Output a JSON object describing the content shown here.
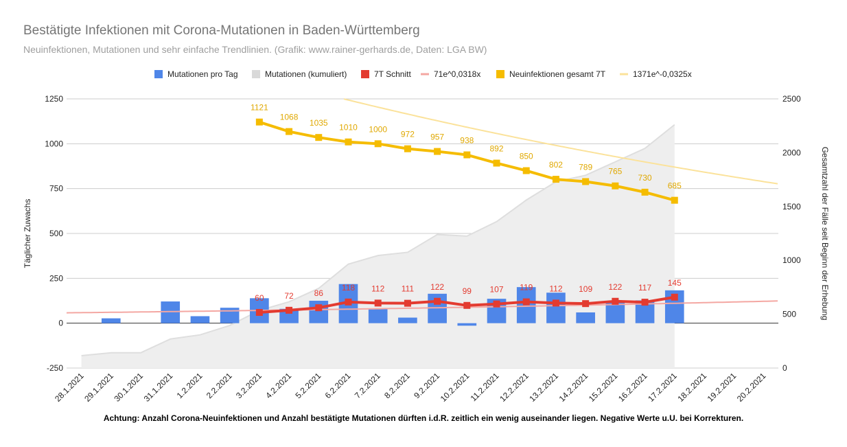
{
  "title": "Bestätigte Infektionen mit Corona-Mutationen in Baden-Württemberg",
  "subtitle": "Neuinfektionen, Mutationen und sehr einfache Trendlinien.  (Grafik: www.rainer-gerhards.de, Daten: LGA BW)",
  "footnote": "Achtung: Anzahl Corona-Neuinfektionen und Anzahl bestätigte Mutationen dürften i.d.R. zeitlich ein wenig auseinander liegen. Negative Werte u.U. bei Korrekturen.",
  "colors": {
    "bars": "#4f86e8",
    "cumulative_fill": "#eeeeee",
    "cumulative_line": "#dedede",
    "avg7": "#e33b30",
    "trend_mutations": "#f4a7a2",
    "total7": "#f5bc00",
    "trend_total": "#fbe29a",
    "total_label": "#e0a800",
    "grid": "#cccccc"
  },
  "chart_data": {
    "type": "bar",
    "categories": [
      "28.1.2021",
      "29.1.2021",
      "30.1.2021",
      "31.1.2021",
      "1.2.2021",
      "2.2.2021",
      "3.2.2021",
      "4.2.2021",
      "5.2.2021",
      "6.2.2021",
      "7.2.2021",
      "8.2.2021",
      "9.2.2021",
      "10.2.2021",
      "11.2.2021",
      "12.2.2021",
      "13.2.2021",
      "14.2.2021",
      "15.2.2021",
      "16.2.2021",
      "17.2.2021",
      "18.2.2021",
      "19.2.2021",
      "20.2.2021"
    ],
    "y_left_label": "Täglicher Zuwachs",
    "y_left_range": [
      -250,
      1250
    ],
    "y_left_ticks": [
      "-250",
      "0",
      "250",
      "500",
      "750",
      "1000",
      "1250"
    ],
    "y_right_label": "Gesamtzahl der Fälle seit Beginn der Erhebung",
    "y_right_range": [
      0,
      2500
    ],
    "y_right_ticks": [
      "0",
      "500",
      "1000",
      "1500",
      "2000",
      "2500"
    ],
    "legend_position": "top",
    "series": [
      {
        "name": "Mutationen pro Tag",
        "type": "bar",
        "axis": "left",
        "values": [
          null,
          27,
          null,
          121,
          39,
          86,
          139,
          80,
          125,
          218,
          80,
          31,
          164,
          -14,
          136,
          201,
          170,
          60,
          124,
          127,
          183,
          null,
          null,
          null
        ]
      },
      {
        "name": "Mutationen (kumuliert)",
        "type": "area",
        "axis": "right",
        "values": [
          115,
          142,
          142,
          270,
          308,
          395,
          535,
          615,
          740,
          965,
          1045,
          1075,
          1240,
          1225,
          1360,
          1560,
          1730,
          1790,
          1915,
          2040,
          2260,
          null,
          null,
          null
        ]
      },
      {
        "name": "7T Schnitt",
        "type": "line",
        "axis": "left",
        "values": [
          null,
          null,
          null,
          null,
          null,
          null,
          60,
          72,
          86,
          118,
          112,
          111,
          122,
          99,
          107,
          119,
          112,
          109,
          122,
          117,
          145,
          null,
          null,
          null
        ]
      },
      {
        "name": "71e^0,0318x",
        "type": "trendline",
        "axis": "left",
        "a": 71,
        "b": 0.0318
      },
      {
        "name": "Neuinfektionen gesamt 7T",
        "type": "line",
        "axis": "left",
        "values": [
          null,
          null,
          null,
          null,
          null,
          null,
          1121,
          1068,
          1035,
          1010,
          1000,
          972,
          957,
          938,
          892,
          850,
          802,
          789,
          765,
          730,
          685,
          null,
          null,
          null
        ]
      },
      {
        "name": "1371e^-0,0325x",
        "type": "trendline",
        "axis": "left",
        "a": 1371,
        "b": -0.0325
      }
    ],
    "data_labels": {
      "7T Schnitt": [
        "60",
        "72",
        "86",
        "118",
        "112",
        "111",
        "122",
        "99",
        "107",
        "119",
        "112",
        "109",
        "122",
        "117",
        "145"
      ],
      "Neuinfektionen gesamt 7T": [
        "1121",
        "1068",
        "1035",
        "1010",
        "1000",
        "972",
        "957",
        "938",
        "892",
        "850",
        "802",
        "789",
        "765",
        "730",
        "685"
      ]
    }
  }
}
